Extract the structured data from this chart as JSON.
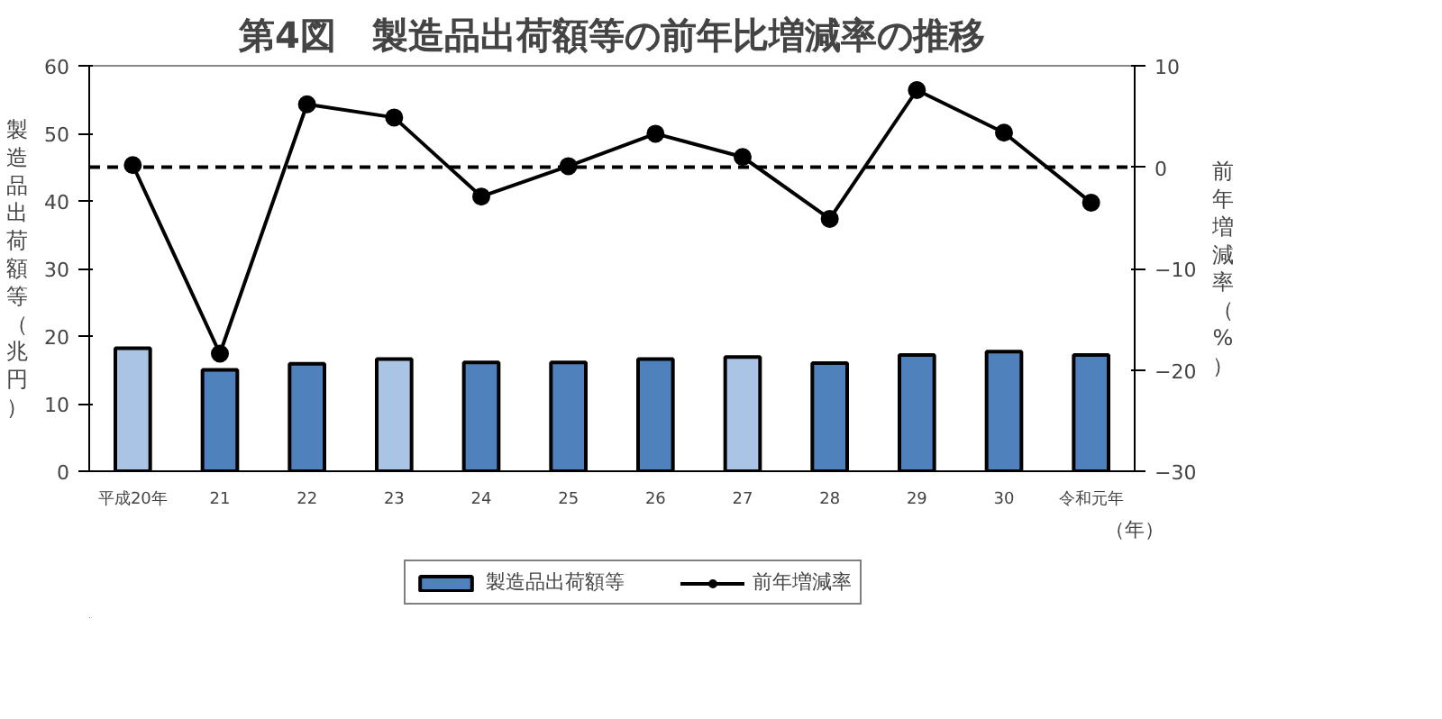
{
  "chart_data": {
    "type": "bar",
    "title": "第4図　製造品出荷額等の前年比増減率の推移",
    "categories": [
      "平成20年",
      "21",
      "22",
      "23",
      "24",
      "25",
      "26",
      "27",
      "28",
      "29",
      "30",
      "令和元年"
    ],
    "xlabel": "（年）",
    "ylabel": "製造品出荷額等（兆円）",
    "y2label": "前年増減率（%）",
    "series": [
      {
        "name": "製造品出荷額等",
        "color": "#4f81bd",
        "colors": [
          "#a9c4e4",
          "#4f81bd",
          "#4f81bd",
          "#a9c4e4",
          "#4f81bd",
          "#4f81bd",
          "#4f81bd",
          "#a9c4e4",
          "#4f81bd",
          "#4f81bd",
          "#4f81bd",
          "#4f81bd"
        ],
        "values": [
          18.2,
          15.0,
          15.9,
          16.6,
          16.1,
          16.1,
          16.6,
          16.9,
          16.0,
          17.2,
          17.7,
          17.2
        ]
      },
      {
        "name": "前年増減率",
        "type": "line",
        "axis": "y2",
        "color": "#000000",
        "marker": "circle",
        "values": [
          0.2,
          -18.4,
          6.2,
          4.9,
          -2.9,
          0.1,
          3.3,
          1.0,
          -5.1,
          7.6,
          3.4,
          -3.5
        ]
      }
    ],
    "ylim": [
      0,
      60
    ],
    "yticks": [
      0,
      10,
      20,
      30,
      40,
      50,
      60
    ],
    "y2lim": [
      -30,
      10
    ],
    "y2ticks": [
      -30,
      -20,
      -10,
      0,
      10
    ],
    "ref_lines": [
      {
        "axis": "y2",
        "value": 0,
        "color": "#000000",
        "line_style": "dashed"
      }
    ],
    "grid": false,
    "legend": "bottom"
  }
}
